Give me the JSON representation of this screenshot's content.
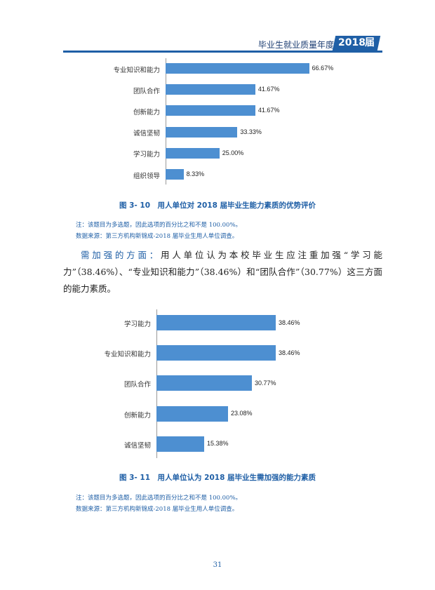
{
  "header": {
    "title": "毕业生就业质量年度报告",
    "year": "2018",
    "suffix": "届"
  },
  "charts": [
    {
      "caption": "图 3- 10　用人单位对 2018 届毕业生能力素质的优势评价",
      "notes": [
        "注：该题目为多选题，因此选项的百分比之和不是 100.00%。",
        "数据来源：第三方机构新锦成-2018 届毕业生用人单位调查。"
      ]
    },
    {
      "caption": "图 3- 11　用人单位认为 2018 届毕业生需加强的能力素质",
      "notes": [
        "注：该题目为多选题，因此选项的百分比之和不是 100.00%。",
        "数据来源：第三方机构新锦成-2018 届毕业生用人单位调查。"
      ]
    }
  ],
  "paragraph": {
    "lead": "需加强的方面：",
    "body": "用人单位认为本校毕业生应注重加强“学习能力”（38.46%）、“专业知识和能力”（38.46%）和“团队合作”（30.77%）这三方面的能力素质。"
  },
  "page_number": "31",
  "chart_data": [
    {
      "type": "bar",
      "orientation": "horizontal",
      "categories": [
        "专业知识和能力",
        "团队合作",
        "创新能力",
        "诚信坚韧",
        "学习能力",
        "组织领导"
      ],
      "values": [
        66.67,
        41.67,
        41.67,
        33.33,
        25.0,
        8.33
      ],
      "value_labels": [
        "66.67%",
        "41.67%",
        "41.67%",
        "33.33%",
        "25.00%",
        "8.33%"
      ],
      "title": "",
      "xlim": [
        0,
        70
      ],
      "color": "#4d8fd1"
    },
    {
      "type": "bar",
      "orientation": "horizontal",
      "categories": [
        "学习能力",
        "专业知识和能力",
        "团队合作",
        "创新能力",
        "诚信坚韧"
      ],
      "values": [
        38.46,
        38.46,
        30.77,
        23.08,
        15.38
      ],
      "value_labels": [
        "38.46%",
        "38.46%",
        "30.77%",
        "23.08%",
        "15.38%"
      ],
      "title": "",
      "xlim": [
        0,
        40
      ],
      "color": "#4d8fd1"
    }
  ]
}
